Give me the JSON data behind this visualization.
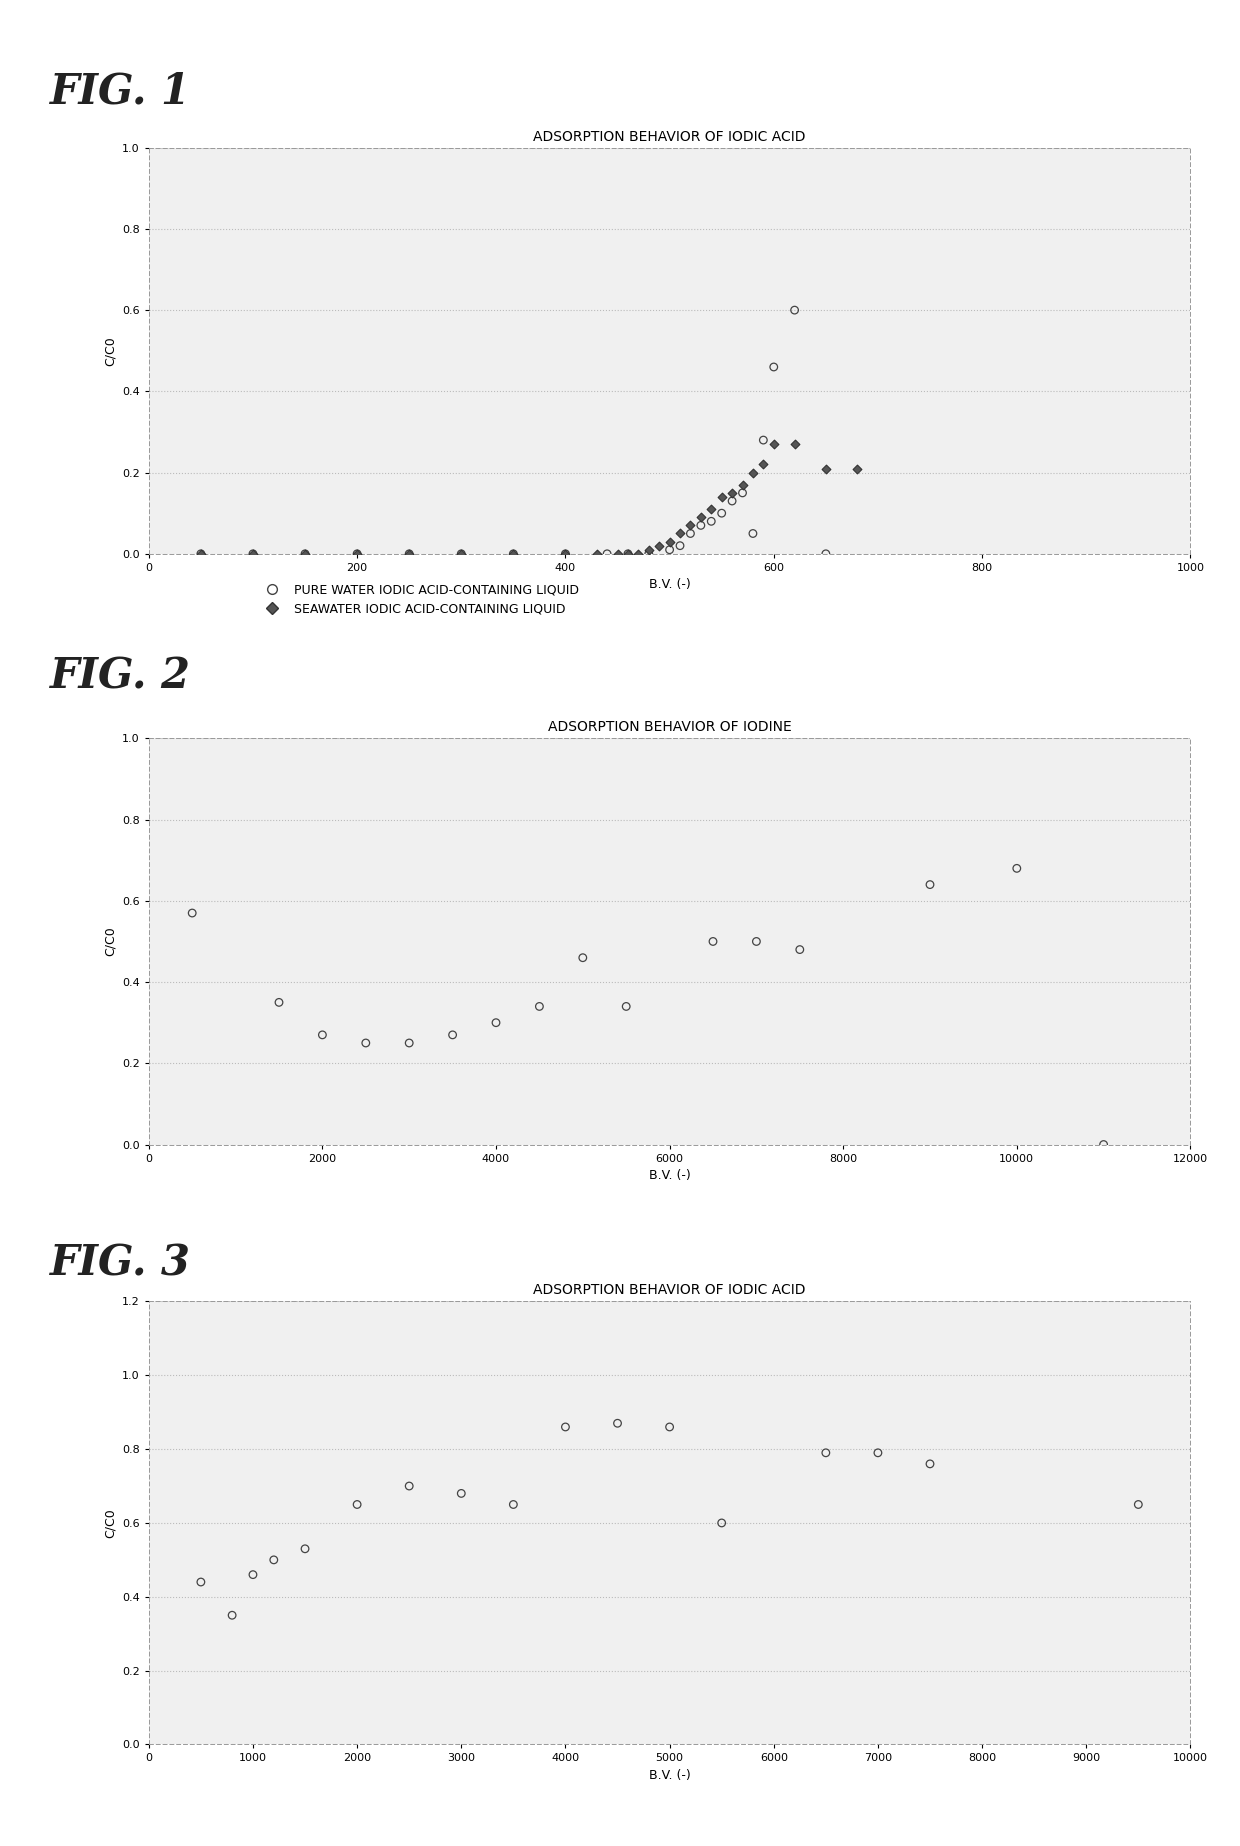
{
  "fig1": {
    "title": "ADSORPTION BEHAVIOR OF IODIC ACID",
    "xlabel": "B.V. (-)",
    "ylabel": "C/C0",
    "xlim": [
      0,
      1000
    ],
    "ylim": [
      0.0,
      1.0
    ],
    "yticks": [
      0.0,
      0.2,
      0.4,
      0.6,
      0.8,
      1.0
    ],
    "xticks": [
      0,
      200,
      400,
      600,
      800,
      1000
    ],
    "pure_water_x": [
      50,
      100,
      150,
      200,
      250,
      300,
      350,
      400,
      440,
      460,
      480,
      500,
      510,
      520,
      530,
      540,
      550,
      560,
      570,
      580,
      590,
      600,
      620,
      650
    ],
    "pure_water_y": [
      0.0,
      0.0,
      0.0,
      0.0,
      0.0,
      0.0,
      0.0,
      0.0,
      0.0,
      0.0,
      0.0,
      0.01,
      0.02,
      0.05,
      0.07,
      0.08,
      0.1,
      0.13,
      0.15,
      0.05,
      0.28,
      0.46,
      0.6,
      0.0
    ],
    "seawater_x": [
      50,
      100,
      150,
      200,
      250,
      300,
      350,
      400,
      430,
      450,
      460,
      470,
      480,
      490,
      500,
      510,
      520,
      530,
      540,
      550,
      560,
      570,
      580,
      590,
      600,
      620,
      650,
      680
    ],
    "seawater_y": [
      0.0,
      0.0,
      0.0,
      0.0,
      0.0,
      0.0,
      0.0,
      0.0,
      0.0,
      0.0,
      0.0,
      0.0,
      0.01,
      0.02,
      0.03,
      0.05,
      0.07,
      0.09,
      0.11,
      0.14,
      0.15,
      0.17,
      0.2,
      0.22,
      0.27,
      0.27,
      0.21,
      0.21
    ],
    "legend": [
      "PURE WATER IODIC ACID-CONTAINING LIQUID",
      "SEAWATER IODIC ACID-CONTAINING LIQUID"
    ]
  },
  "fig2": {
    "title": "ADSORPTION BEHAVIOR OF IODINE",
    "xlabel": "B.V. (-)",
    "ylabel": "C/C0",
    "xlim": [
      0,
      12000
    ],
    "ylim": [
      0.0,
      1.0
    ],
    "yticks": [
      0.0,
      0.2,
      0.4,
      0.6,
      0.8,
      1.0
    ],
    "xticks": [
      0,
      2000,
      4000,
      6000,
      8000,
      10000,
      12000
    ],
    "data_x": [
      500,
      1500,
      2000,
      2500,
      3000,
      3500,
      4000,
      4500,
      5000,
      5500,
      6500,
      7000,
      7500,
      9000,
      10000,
      11000
    ],
    "data_y": [
      0.57,
      0.35,
      0.27,
      0.25,
      0.25,
      0.27,
      0.3,
      0.34,
      0.46,
      0.34,
      0.5,
      0.5,
      0.48,
      0.64,
      0.68,
      0.0
    ]
  },
  "fig3": {
    "title": "ADSORPTION BEHAVIOR OF IODIC ACID",
    "xlabel": "B.V. (-)",
    "ylabel": "C/C0",
    "xlim": [
      0,
      10000
    ],
    "ylim": [
      0.0,
      1.2
    ],
    "yticks": [
      0.0,
      0.2,
      0.4,
      0.6,
      0.8,
      1.0,
      1.2
    ],
    "xticks": [
      0,
      1000,
      2000,
      3000,
      4000,
      5000,
      6000,
      7000,
      8000,
      9000,
      10000
    ],
    "data_x": [
      500,
      800,
      1000,
      1200,
      1500,
      2000,
      2500,
      3000,
      3500,
      4000,
      4500,
      5000,
      5500,
      6500,
      7000,
      7500,
      9500
    ],
    "data_y": [
      0.44,
      0.35,
      0.46,
      0.5,
      0.53,
      0.65,
      0.7,
      0.68,
      0.65,
      0.86,
      0.87,
      0.86,
      0.6,
      0.79,
      0.79,
      0.76,
      0.65
    ]
  },
  "plot_bg": "#f0f0f0",
  "grid_color": "#bbbbbb",
  "marker_color": "#555555"
}
